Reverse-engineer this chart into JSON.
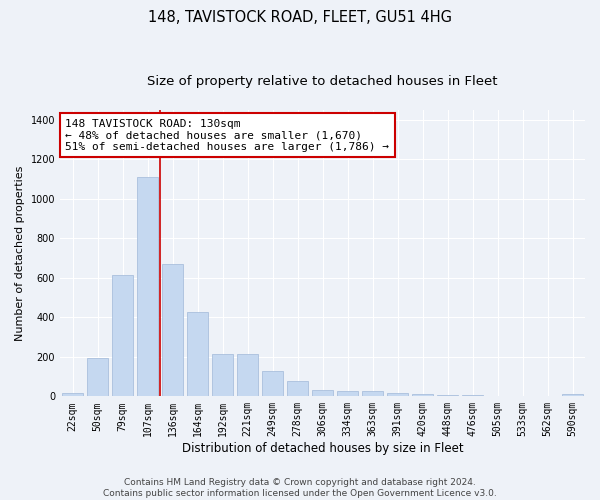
{
  "title": "148, TAVISTOCK ROAD, FLEET, GU51 4HG",
  "subtitle": "Size of property relative to detached houses in Fleet",
  "xlabel": "Distribution of detached houses by size in Fleet",
  "ylabel": "Number of detached properties",
  "bar_color": "#c5d8f0",
  "bar_edgecolor": "#a0b8d8",
  "annotation_line1": "148 TAVISTOCK ROAD: 130sqm",
  "annotation_line2": "← 48% of detached houses are smaller (1,670)",
  "annotation_line3": "51% of semi-detached houses are larger (1,786) →",
  "vline_color": "#cc0000",
  "vline_x": 3.5,
  "categories": [
    "22sqm",
    "50sqm",
    "79sqm",
    "107sqm",
    "136sqm",
    "164sqm",
    "192sqm",
    "221sqm",
    "249sqm",
    "278sqm",
    "306sqm",
    "334sqm",
    "363sqm",
    "391sqm",
    "420sqm",
    "448sqm",
    "476sqm",
    "505sqm",
    "533sqm",
    "562sqm",
    "590sqm"
  ],
  "values": [
    15,
    195,
    615,
    1110,
    670,
    425,
    215,
    215,
    130,
    80,
    32,
    28,
    28,
    15,
    12,
    5,
    5,
    2,
    2,
    0,
    10
  ],
  "ylim": [
    0,
    1450
  ],
  "yticks": [
    0,
    200,
    400,
    600,
    800,
    1000,
    1200,
    1400
  ],
  "background_color": "#eef2f8",
  "grid_color": "#ffffff",
  "footer_text": "Contains HM Land Registry data © Crown copyright and database right 2024.\nContains public sector information licensed under the Open Government Licence v3.0.",
  "title_fontsize": 10.5,
  "subtitle_fontsize": 9.5,
  "xlabel_fontsize": 8.5,
  "ylabel_fontsize": 8,
  "tick_fontsize": 7,
  "annotation_fontsize": 8,
  "footer_fontsize": 6.5
}
